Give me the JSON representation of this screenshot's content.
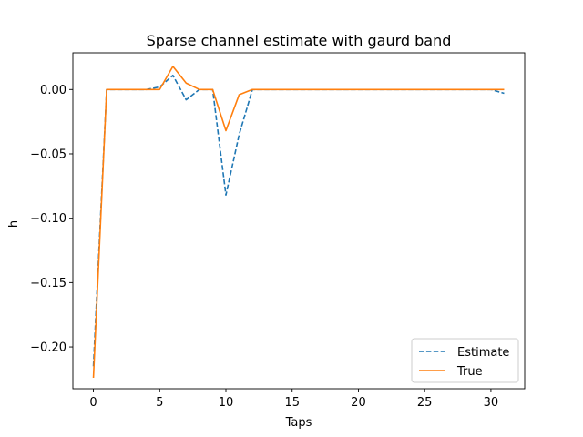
{
  "chart_data": {
    "type": "line",
    "title": "Sparse channel estimate with gaurd band",
    "xlabel": "Taps",
    "ylabel": "h",
    "xlim": [
      -1.55,
      32.55
    ],
    "ylim": [
      -0.2325,
      0.0285
    ],
    "xticks": [
      0,
      5,
      10,
      15,
      20,
      25,
      30
    ],
    "xtick_labels": [
      "0",
      "5",
      "10",
      "15",
      "20",
      "25",
      "30"
    ],
    "yticks": [
      -0.2,
      -0.15,
      -0.1,
      -0.05,
      0.0
    ],
    "ytick_labels": [
      "−0.20",
      "−0.15",
      "−0.10",
      "−0.05",
      "0.00"
    ],
    "grid": false,
    "legend_position": "lower right",
    "series": [
      {
        "name": "Estimate",
        "color": "#1f77b4",
        "style": "dashed",
        "x": [
          0,
          1,
          2,
          3,
          4,
          5,
          6,
          7,
          8,
          9,
          10,
          11,
          12,
          13,
          14,
          15,
          16,
          17,
          18,
          19,
          20,
          21,
          22,
          23,
          24,
          25,
          26,
          27,
          28,
          29,
          30,
          31
        ],
        "values": [
          -0.215,
          0,
          0,
          0,
          0,
          0.002,
          0.011,
          -0.008,
          0,
          0,
          -0.082,
          -0.035,
          0,
          0,
          0,
          0,
          0,
          0,
          0,
          0,
          0,
          0,
          0,
          0,
          0,
          0,
          0,
          0,
          0,
          0,
          0,
          -0.003
        ]
      },
      {
        "name": "True",
        "color": "#ff7f0e",
        "style": "solid",
        "x": [
          0,
          1,
          2,
          3,
          4,
          5,
          6,
          7,
          8,
          9,
          10,
          11,
          12,
          13,
          14,
          15,
          16,
          17,
          18,
          19,
          20,
          21,
          22,
          23,
          24,
          25,
          26,
          27,
          28,
          29,
          30,
          31
        ],
        "values": [
          -0.224,
          0,
          0,
          0,
          0,
          0,
          0.018,
          0.005,
          0,
          0,
          -0.032,
          -0.004,
          0,
          0,
          0,
          0,
          0,
          0,
          0,
          0,
          0,
          0,
          0,
          0,
          0,
          0,
          0,
          0,
          0,
          0,
          0,
          0
        ]
      }
    ]
  }
}
